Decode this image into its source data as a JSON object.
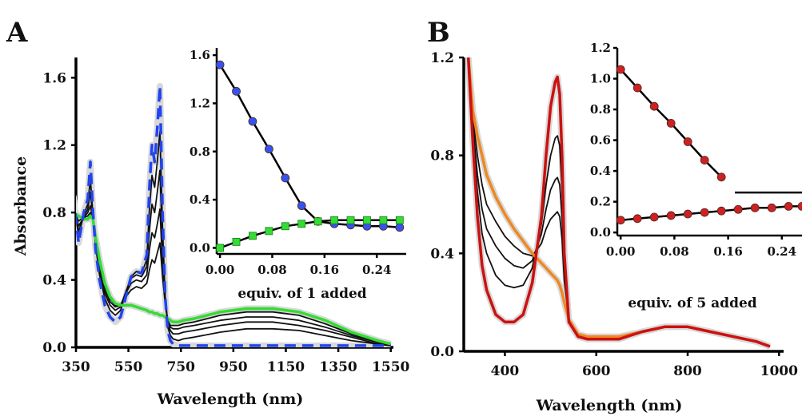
{
  "chart_data": [
    {
      "id": "A",
      "type": "line",
      "panel_label": "A",
      "xlabel": "Wavelength (nm)",
      "ylabel": "Absorbance",
      "xlim": [
        350,
        1560
      ],
      "ylim": [
        0,
        1.72
      ],
      "xticks": [
        350,
        550,
        750,
        950,
        1150,
        1350,
        1550
      ],
      "yticks": [
        0.0,
        0.4,
        0.8,
        1.2,
        1.6
      ],
      "ytick_labels": [
        "0.0",
        "0.4",
        "0.8",
        "1.2",
        "1.6"
      ],
      "colors": {
        "start": "#2244ee",
        "end": "#33dd33",
        "intermediate": "#111111",
        "halo": "#d8d8d8"
      },
      "series": [
        {
          "role": "start",
          "style": "dashed",
          "x": [
            340,
            360,
            380,
            395,
            405,
            415,
            425,
            440,
            460,
            480,
            500,
            520,
            540,
            560,
            580,
            600,
            620,
            630,
            640,
            650,
            660,
            670,
            680,
            690,
            700,
            710,
            720,
            740,
            760,
            800,
            900,
            1000,
            1100,
            1200,
            1300,
            1400,
            1500,
            1550
          ],
          "y": [
            0.9,
            0.62,
            0.8,
            0.88,
            1.1,
            0.8,
            0.58,
            0.4,
            0.25,
            0.18,
            0.15,
            0.18,
            0.3,
            0.42,
            0.45,
            0.44,
            0.55,
            0.95,
            1.2,
            1.1,
            1.3,
            1.55,
            0.8,
            0.3,
            0.1,
            0.04,
            0.02,
            0.01,
            0.01,
            0.01,
            0.01,
            0.01,
            0.01,
            0.01,
            0.01,
            0.01,
            0.01,
            0.01
          ]
        },
        {
          "role": "intermediate",
          "style": "solid",
          "x": [
            340,
            360,
            380,
            395,
            405,
            415,
            425,
            440,
            460,
            480,
            500,
            520,
            540,
            560,
            580,
            600,
            620,
            630,
            640,
            650,
            660,
            670,
            680,
            690,
            700,
            710,
            720,
            740,
            760,
            800,
            900,
            1000,
            1100,
            1200,
            1300,
            1400,
            1500,
            1550
          ],
          "y": [
            0.88,
            0.66,
            0.79,
            0.85,
            1.0,
            0.78,
            0.6,
            0.43,
            0.29,
            0.22,
            0.19,
            0.22,
            0.32,
            0.42,
            0.45,
            0.44,
            0.52,
            0.82,
            1.02,
            0.95,
            1.1,
            1.28,
            0.7,
            0.3,
            0.12,
            0.07,
            0.05,
            0.04,
            0.05,
            0.06,
            0.09,
            0.11,
            0.11,
            0.1,
            0.07,
            0.04,
            0.02,
            0.01
          ]
        },
        {
          "role": "intermediate",
          "style": "solid",
          "x": [
            340,
            360,
            380,
            395,
            405,
            415,
            425,
            440,
            460,
            480,
            500,
            520,
            540,
            560,
            580,
            600,
            620,
            630,
            640,
            650,
            660,
            670,
            680,
            690,
            700,
            710,
            720,
            740,
            760,
            800,
            900,
            1000,
            1100,
            1200,
            1300,
            1400,
            1500,
            1550
          ],
          "y": [
            0.86,
            0.69,
            0.78,
            0.82,
            0.92,
            0.77,
            0.62,
            0.46,
            0.32,
            0.25,
            0.22,
            0.24,
            0.33,
            0.41,
            0.43,
            0.42,
            0.48,
            0.7,
            0.85,
            0.8,
            0.92,
            1.05,
            0.6,
            0.3,
            0.14,
            0.1,
            0.08,
            0.08,
            0.09,
            0.1,
            0.13,
            0.15,
            0.15,
            0.13,
            0.1,
            0.06,
            0.02,
            0.01
          ]
        },
        {
          "role": "intermediate",
          "style": "solid",
          "x": [
            340,
            360,
            380,
            395,
            405,
            415,
            425,
            440,
            460,
            480,
            500,
            520,
            540,
            560,
            580,
            600,
            620,
            630,
            640,
            650,
            660,
            670,
            680,
            690,
            700,
            710,
            720,
            740,
            760,
            800,
            900,
            1000,
            1100,
            1200,
            1300,
            1400,
            1500,
            1550
          ],
          "y": [
            0.84,
            0.72,
            0.77,
            0.8,
            0.84,
            0.76,
            0.63,
            0.48,
            0.34,
            0.27,
            0.24,
            0.25,
            0.32,
            0.38,
            0.4,
            0.39,
            0.43,
            0.58,
            0.68,
            0.65,
            0.73,
            0.82,
            0.5,
            0.28,
            0.15,
            0.12,
            0.11,
            0.11,
            0.12,
            0.13,
            0.16,
            0.18,
            0.18,
            0.16,
            0.12,
            0.07,
            0.03,
            0.01
          ]
        },
        {
          "role": "intermediate",
          "style": "solid",
          "x": [
            340,
            360,
            380,
            395,
            405,
            415,
            425,
            440,
            460,
            480,
            500,
            520,
            540,
            560,
            580,
            600,
            620,
            630,
            640,
            650,
            660,
            670,
            680,
            690,
            700,
            710,
            720,
            740,
            760,
            800,
            900,
            1000,
            1100,
            1200,
            1300,
            1400,
            1500,
            1550
          ],
          "y": [
            0.82,
            0.75,
            0.77,
            0.78,
            0.8,
            0.76,
            0.64,
            0.5,
            0.36,
            0.29,
            0.25,
            0.25,
            0.3,
            0.34,
            0.36,
            0.35,
            0.38,
            0.46,
            0.52,
            0.5,
            0.56,
            0.62,
            0.42,
            0.26,
            0.16,
            0.13,
            0.13,
            0.13,
            0.14,
            0.15,
            0.19,
            0.21,
            0.21,
            0.19,
            0.14,
            0.08,
            0.03,
            0.01
          ]
        },
        {
          "role": "end",
          "style": "solid",
          "x": [
            340,
            360,
            380,
            395,
            405,
            415,
            425,
            440,
            460,
            480,
            500,
            520,
            540,
            560,
            580,
            600,
            620,
            630,
            640,
            650,
            660,
            670,
            680,
            690,
            700,
            710,
            720,
            740,
            760,
            800,
            900,
            1000,
            1100,
            1200,
            1300,
            1400,
            1500,
            1550
          ],
          "y": [
            0.8,
            0.78,
            0.76,
            0.76,
            0.78,
            0.76,
            0.65,
            0.52,
            0.38,
            0.3,
            0.26,
            0.25,
            0.25,
            0.25,
            0.24,
            0.23,
            0.22,
            0.21,
            0.21,
            0.2,
            0.2,
            0.19,
            0.19,
            0.18,
            0.17,
            0.16,
            0.15,
            0.15,
            0.16,
            0.17,
            0.21,
            0.23,
            0.23,
            0.21,
            0.16,
            0.09,
            0.04,
            0.02
          ]
        }
      ],
      "inset": {
        "xlabel": "equiv. of 1 added",
        "xlim": [
          -0.005,
          0.285
        ],
        "ylim": [
          -0.05,
          1.66
        ],
        "xticks": [
          0.0,
          0.08,
          0.16,
          0.24
        ],
        "xtick_labels": [
          "0.00",
          "0.08",
          "0.16",
          "0.24"
        ],
        "yticks": [
          0.0,
          0.4,
          0.8,
          1.2,
          1.6
        ],
        "ytick_labels": [
          "0.0",
          "0.4",
          "0.8",
          "1.2",
          "1.6"
        ],
        "series": [
          {
            "color": "#3355ee",
            "marker": "circle",
            "x": [
              0.0,
              0.025,
              0.05,
              0.075,
              0.1,
              0.125,
              0.15,
              0.175,
              0.2,
              0.225,
              0.25,
              0.275
            ],
            "y": [
              1.52,
              1.3,
              1.05,
              0.82,
              0.58,
              0.35,
              0.22,
              0.2,
              0.19,
              0.18,
              0.18,
              0.17
            ]
          },
          {
            "color": "#33dd33",
            "marker": "square",
            "x": [
              0.0,
              0.025,
              0.05,
              0.075,
              0.1,
              0.125,
              0.15,
              0.175,
              0.2,
              0.225,
              0.25,
              0.275
            ],
            "y": [
              0.0,
              0.05,
              0.1,
              0.14,
              0.18,
              0.2,
              0.22,
              0.23,
              0.23,
              0.23,
              0.23,
              0.23
            ]
          }
        ]
      }
    },
    {
      "id": "B",
      "type": "line",
      "panel_label": "B",
      "xlabel": "Wavelength (nm)",
      "ylabel": "",
      "xlim": [
        310,
        1010
      ],
      "ylim": [
        0,
        1.2
      ],
      "xticks": [
        400,
        600,
        800,
        1000
      ],
      "yticks": [
        0.0,
        0.4,
        0.8,
        1.2
      ],
      "ytick_labels": [
        "0.0",
        "0.4",
        "0.8",
        "1.2"
      ],
      "colors": {
        "start": "#cc1111",
        "end": "#ee8822",
        "intermediate": "#111111",
        "halo": "#d8d8d8"
      },
      "series": [
        {
          "role": "start",
          "style": "solid",
          "x": [
            320,
            330,
            340,
            350,
            360,
            380,
            400,
            420,
            440,
            460,
            480,
            490,
            500,
            510,
            515,
            520,
            525,
            530,
            540,
            560,
            580,
            600,
            650,
            700,
            750,
            800,
            850,
            900,
            950,
            980
          ],
          "y": [
            1.2,
            0.85,
            0.55,
            0.35,
            0.25,
            0.15,
            0.12,
            0.12,
            0.15,
            0.28,
            0.55,
            0.8,
            1.0,
            1.1,
            1.12,
            1.05,
            0.8,
            0.4,
            0.12,
            0.06,
            0.05,
            0.05,
            0.05,
            0.08,
            0.1,
            0.1,
            0.08,
            0.06,
            0.04,
            0.02
          ]
        },
        {
          "role": "intermediate",
          "style": "solid",
          "x": [
            320,
            330,
            340,
            350,
            360,
            380,
            400,
            420,
            440,
            460,
            480,
            490,
            500,
            510,
            515,
            520,
            525,
            530,
            540,
            560,
            580,
            600,
            650,
            700,
            750,
            800,
            850,
            900,
            950,
            980
          ],
          "y": [
            1.2,
            0.9,
            0.65,
            0.48,
            0.4,
            0.31,
            0.27,
            0.26,
            0.27,
            0.34,
            0.52,
            0.68,
            0.8,
            0.87,
            0.88,
            0.84,
            0.66,
            0.37,
            0.13,
            0.07,
            0.06,
            0.06,
            0.06,
            0.08,
            0.1,
            0.1,
            0.08,
            0.06,
            0.04,
            0.02
          ]
        },
        {
          "role": "intermediate",
          "style": "solid",
          "x": [
            320,
            330,
            340,
            350,
            360,
            380,
            400,
            420,
            440,
            460,
            480,
            490,
            500,
            510,
            515,
            520,
            525,
            530,
            540,
            560,
            580,
            600,
            650,
            700,
            750,
            800,
            850,
            900,
            950,
            980
          ],
          "y": [
            1.2,
            0.92,
            0.72,
            0.58,
            0.5,
            0.43,
            0.38,
            0.35,
            0.34,
            0.37,
            0.48,
            0.58,
            0.66,
            0.7,
            0.71,
            0.68,
            0.55,
            0.33,
            0.13,
            0.07,
            0.06,
            0.06,
            0.06,
            0.08,
            0.1,
            0.1,
            0.08,
            0.06,
            0.04,
            0.02
          ]
        },
        {
          "role": "intermediate",
          "style": "solid",
          "x": [
            320,
            330,
            340,
            350,
            360,
            380,
            400,
            420,
            440,
            460,
            480,
            490,
            500,
            510,
            515,
            520,
            525,
            530,
            540,
            560,
            580,
            600,
            650,
            700,
            750,
            800,
            850,
            900,
            950,
            980
          ],
          "y": [
            1.2,
            0.95,
            0.8,
            0.68,
            0.6,
            0.53,
            0.47,
            0.43,
            0.4,
            0.39,
            0.44,
            0.5,
            0.54,
            0.56,
            0.57,
            0.55,
            0.46,
            0.29,
            0.13,
            0.07,
            0.06,
            0.06,
            0.06,
            0.08,
            0.1,
            0.1,
            0.08,
            0.06,
            0.04,
            0.02
          ]
        },
        {
          "role": "end",
          "style": "solid",
          "x": [
            320,
            330,
            340,
            350,
            360,
            380,
            400,
            420,
            440,
            460,
            480,
            490,
            500,
            510,
            515,
            520,
            525,
            530,
            540,
            560,
            580,
            600,
            650,
            700,
            750,
            800,
            850,
            900,
            950,
            980
          ],
          "y": [
            1.2,
            0.98,
            0.88,
            0.8,
            0.72,
            0.63,
            0.56,
            0.5,
            0.45,
            0.4,
            0.36,
            0.34,
            0.32,
            0.3,
            0.29,
            0.27,
            0.24,
            0.2,
            0.13,
            0.07,
            0.06,
            0.06,
            0.06,
            0.08,
            0.1,
            0.1,
            0.08,
            0.06,
            0.04,
            0.02
          ]
        }
      ],
      "inset": {
        "xlabel": "equiv. of 5 added",
        "xlim": [
          -0.005,
          0.27
        ],
        "ylim": [
          -0.02,
          1.2
        ],
        "xticks": [
          0.0,
          0.08,
          0.16,
          0.24
        ],
        "xtick_labels": [
          "0.00",
          "0.08",
          "0.16",
          "0.24"
        ],
        "yticks": [
          0.0,
          0.2,
          0.4,
          0.6,
          0.8,
          1.0,
          1.2
        ],
        "ytick_labels": [
          "0.0",
          "0.2",
          "0.4",
          "0.6",
          "0.8",
          "1.0",
          "1.2"
        ],
        "series": [
          {
            "color": "#cc2222",
            "marker": "circle",
            "x": [
              0.0,
              0.025,
              0.05,
              0.075,
              0.1,
              0.125,
              0.15
            ],
            "y": [
              1.06,
              0.94,
              0.82,
              0.71,
              0.59,
              0.47,
              0.36
            ]
          },
          {
            "color": "#cc2222",
            "marker": "circle",
            "x": [
              0.0,
              0.025,
              0.05,
              0.075,
              0.1,
              0.125,
              0.15,
              0.175,
              0.2,
              0.225,
              0.25,
              0.27
            ],
            "y": [
              0.08,
              0.09,
              0.1,
              0.11,
              0.12,
              0.13,
              0.14,
              0.15,
              0.16,
              0.16,
              0.17,
              0.17
            ]
          }
        ],
        "plateau": {
          "x": [
            0.17,
            0.27
          ],
          "y": [
            0.26,
            0.26
          ]
        }
      }
    }
  ]
}
